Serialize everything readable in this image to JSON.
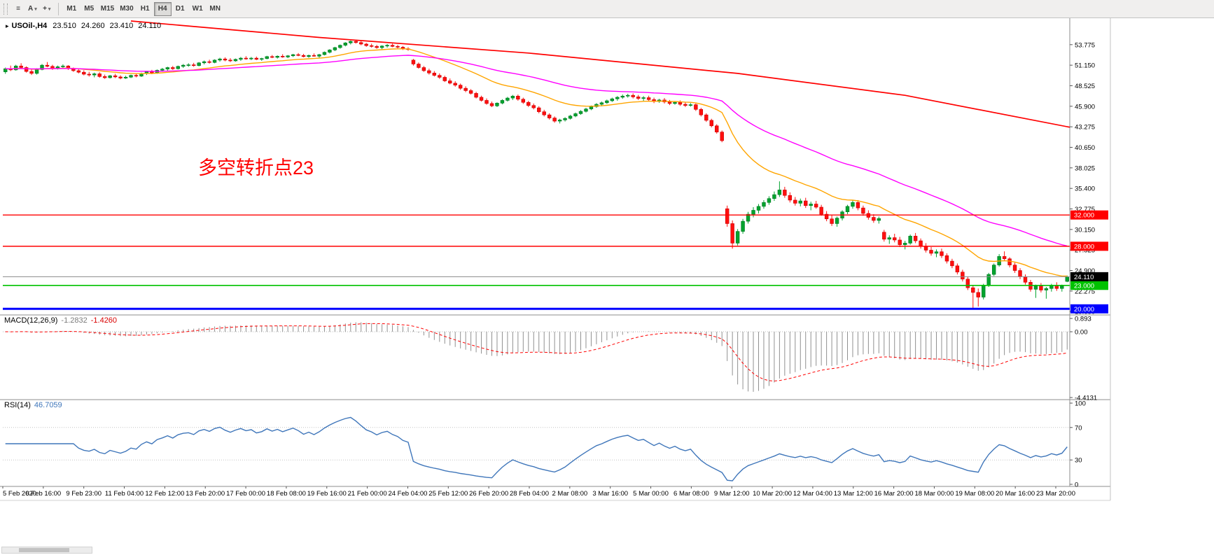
{
  "toolbar": {
    "menu_icon": "≡",
    "text_tool_label": "A",
    "cursor_tool_label": "+",
    "caret": "▾",
    "timeframes": [
      {
        "label": "M1",
        "active": false
      },
      {
        "label": "M5",
        "active": false
      },
      {
        "label": "M15",
        "active": false
      },
      {
        "label": "M30",
        "active": false
      },
      {
        "label": "H1",
        "active": false
      },
      {
        "label": "H4",
        "active": true
      },
      {
        "label": "D1",
        "active": false
      },
      {
        "label": "W1",
        "active": false
      },
      {
        "label": "MN",
        "active": false
      }
    ]
  },
  "chart_header": {
    "expand_arrow": "▸",
    "symbol_tf": "USOil-,H4",
    "open": "23.510",
    "high": "24.260",
    "low": "23.410",
    "close": "24.110"
  },
  "annotation": {
    "text": "多空转折点23",
    "color": "#FF0000"
  },
  "price_axis": {
    "min": 19.4,
    "max": 56.8,
    "labels": [
      "53.775",
      "51.150",
      "48.525",
      "45.900",
      "43.275",
      "40.650",
      "38.025",
      "35.400",
      "32.775",
      "30.150",
      "27.525",
      "24.900",
      "22.275",
      "19.650"
    ]
  },
  "time_axis": {
    "labels": [
      "5 Feb 2020",
      "6 Feb 16:00",
      "9 Feb 23:00",
      "11 Feb 04:00",
      "12 Feb 12:00",
      "13 Feb 20:00",
      "17 Feb 00:00",
      "18 Feb 08:00",
      "19 Feb 16:00",
      "21 Feb 00:00",
      "24 Feb 04:00",
      "25 Feb 12:00",
      "26 Feb 20:00",
      "28 Feb 04:00",
      "2 Mar 08:00",
      "3 Mar 16:00",
      "5 Mar 00:00",
      "6 Mar 08:00",
      "9 Mar 12:00",
      "10 Mar 20:00",
      "12 Mar 04:00",
      "13 Mar 12:00",
      "16 Mar 20:00",
      "18 Mar 00:00",
      "19 Mar 08:00",
      "20 Mar 16:00",
      "23 Mar 20:00"
    ]
  },
  "macd_panel": {
    "name": "MACD(12,26,9)",
    "value_main": "-1.2832",
    "value_signal": "-1.4260",
    "scale_max": "0.893",
    "scale_zero": "0.00",
    "scale_min": "-4.4131",
    "params": {
      "fast": 12,
      "slow": 26,
      "signal": 9
    },
    "colors": {
      "histogram": "#909090",
      "signal": "#FF0000"
    }
  },
  "rsi_panel": {
    "name": "RSI(14)",
    "value": "46.7059",
    "period": 14,
    "levels": [
      "100",
      "70",
      "30",
      "0"
    ],
    "level_lines": [
      70,
      30
    ],
    "color": "#3f76ba"
  },
  "chart_data": {
    "type": "candlestick",
    "symbol": "USOil-",
    "timeframe": "H4",
    "colors": {
      "up": "#00a32e",
      "down": "#ff0f0f",
      "up_stroke": "#007a22",
      "down_stroke": "#cc0000",
      "bid_line": "#8a8a8a",
      "bid_badge_bg": "#000000"
    },
    "current_price": {
      "value": 24.11,
      "label": "24.110"
    },
    "hlines": [
      {
        "price": 32.0,
        "label": "32.000",
        "color": "#FF0000",
        "width": 1.4
      },
      {
        "price": 28.0,
        "label": "28.000",
        "color": "#FF0000",
        "width": 1.4
      },
      {
        "price": 23.0,
        "label": "23.000",
        "color": "#00C200",
        "width": 1.6
      },
      {
        "price": 20.0,
        "label": "20.000",
        "color": "#0000FF",
        "width": 3
      }
    ],
    "moving_averages": [
      {
        "period": 21,
        "method": "ema",
        "color": "#FFA500",
        "width": 1.4
      },
      {
        "period": 55,
        "method": "ema",
        "color": "#FF00FF",
        "width": 1.4
      }
    ],
    "trendline": {
      "color": "#FF0000",
      "width": 1.7,
      "points_bar_price": [
        [
          24,
          56.8
        ],
        [
          60,
          54.7
        ],
        [
          100,
          52.7
        ],
        [
          140,
          50.1
        ],
        [
          172,
          47.3
        ],
        [
          206,
          42.9
        ]
      ]
    },
    "candles": [
      [
        50.3,
        50.85,
        50.05,
        50.7
      ],
      [
        50.7,
        51.1,
        50.4,
        50.55
      ],
      [
        50.55,
        51.2,
        50.45,
        51.05
      ],
      [
        51.05,
        51.4,
        50.7,
        50.85
      ],
      [
        50.85,
        51.0,
        50.2,
        50.35
      ],
      [
        50.35,
        50.6,
        49.9,
        50.1
      ],
      [
        50.1,
        50.75,
        49.95,
        50.6
      ],
      [
        50.6,
        51.3,
        50.5,
        51.15
      ],
      [
        51.15,
        51.55,
        50.9,
        51.0
      ],
      [
        51.0,
        51.2,
        50.55,
        50.75
      ],
      [
        50.75,
        51.1,
        50.6,
        50.95
      ],
      [
        50.95,
        51.25,
        50.7,
        51.05
      ],
      [
        51.05,
        51.15,
        50.55,
        50.7
      ],
      [
        50.7,
        50.85,
        50.3,
        50.45
      ],
      [
        50.45,
        50.7,
        50.1,
        50.25
      ],
      [
        50.25,
        50.5,
        49.85,
        50.0
      ],
      [
        50.0,
        50.3,
        49.7,
        49.9
      ],
      [
        49.9,
        50.2,
        49.6,
        50.05
      ],
      [
        50.05,
        50.25,
        49.55,
        49.7
      ],
      [
        49.7,
        49.95,
        49.4,
        49.55
      ],
      [
        49.55,
        49.9,
        49.45,
        49.8
      ],
      [
        49.8,
        50.05,
        49.5,
        49.65
      ],
      [
        49.65,
        49.85,
        49.35,
        49.5
      ],
      [
        49.5,
        49.8,
        49.4,
        49.62
      ],
      [
        49.62,
        49.95,
        49.5,
        49.85
      ],
      [
        49.85,
        50.1,
        49.6,
        49.75
      ],
      [
        49.75,
        50.2,
        49.65,
        50.1
      ],
      [
        50.1,
        50.4,
        49.9,
        50.3
      ],
      [
        50.3,
        50.55,
        50.0,
        50.15
      ],
      [
        50.15,
        50.6,
        50.05,
        50.5
      ],
      [
        50.5,
        50.8,
        50.3,
        50.65
      ],
      [
        50.65,
        50.95,
        50.45,
        50.85
      ],
      [
        50.85,
        51.05,
        50.55,
        50.7
      ],
      [
        50.7,
        51.1,
        50.6,
        51.0
      ],
      [
        51.0,
        51.3,
        50.8,
        51.15
      ],
      [
        51.15,
        51.4,
        50.95,
        51.2
      ],
      [
        51.2,
        51.45,
        50.95,
        51.1
      ],
      [
        51.1,
        51.55,
        51.0,
        51.45
      ],
      [
        51.45,
        51.75,
        51.25,
        51.6
      ],
      [
        51.6,
        51.85,
        51.35,
        51.5
      ],
      [
        51.5,
        51.9,
        51.4,
        51.8
      ],
      [
        51.8,
        52.1,
        51.6,
        51.95
      ],
      [
        51.95,
        52.15,
        51.65,
        51.8
      ],
      [
        51.8,
        52.05,
        51.55,
        51.7
      ],
      [
        51.7,
        52.0,
        51.6,
        51.9
      ],
      [
        51.9,
        52.2,
        51.7,
        52.05
      ],
      [
        52.05,
        52.3,
        51.85,
        51.95
      ],
      [
        51.95,
        52.2,
        51.8,
        52.05
      ],
      [
        52.05,
        52.25,
        51.8,
        51.9
      ],
      [
        51.9,
        52.1,
        51.7,
        52.0
      ],
      [
        52.0,
        52.35,
        51.9,
        52.25
      ],
      [
        52.25,
        52.45,
        52.05,
        52.15
      ],
      [
        52.15,
        52.4,
        52.0,
        52.3
      ],
      [
        52.3,
        52.55,
        52.1,
        52.2
      ],
      [
        52.2,
        52.45,
        52.05,
        52.35
      ],
      [
        52.35,
        52.6,
        52.2,
        52.5
      ],
      [
        52.5,
        52.7,
        52.3,
        52.4
      ],
      [
        52.4,
        52.6,
        52.15,
        52.25
      ],
      [
        52.25,
        52.5,
        52.1,
        52.4
      ],
      [
        52.4,
        52.65,
        52.25,
        52.3
      ],
      [
        52.3,
        52.6,
        52.1,
        52.5
      ],
      [
        52.5,
        52.9,
        52.4,
        52.8
      ],
      [
        52.8,
        53.2,
        52.65,
        53.1
      ],
      [
        53.1,
        53.5,
        52.95,
        53.4
      ],
      [
        53.4,
        53.8,
        53.25,
        53.7
      ],
      [
        53.7,
        54.1,
        53.55,
        54.0
      ],
      [
        54.0,
        54.3,
        53.8,
        54.2
      ],
      [
        54.2,
        54.35,
        53.9,
        54.05
      ],
      [
        54.05,
        54.25,
        53.7,
        53.85
      ],
      [
        53.85,
        54.0,
        53.5,
        53.65
      ],
      [
        53.65,
        53.9,
        53.4,
        53.55
      ],
      [
        53.55,
        53.75,
        53.25,
        53.4
      ],
      [
        53.4,
        53.7,
        53.2,
        53.6
      ],
      [
        53.6,
        53.85,
        53.4,
        53.7
      ],
      [
        53.7,
        53.9,
        53.45,
        53.55
      ],
      [
        53.55,
        53.75,
        53.3,
        53.45
      ],
      [
        53.45,
        53.6,
        53.1,
        53.25
      ],
      [
        53.25,
        53.45,
        53.0,
        53.15
      ],
      [
        51.8,
        51.95,
        51.1,
        51.3
      ],
      [
        51.3,
        51.5,
        50.7,
        50.85
      ],
      [
        50.85,
        51.05,
        50.3,
        50.45
      ],
      [
        50.45,
        50.7,
        49.95,
        50.15
      ],
      [
        50.15,
        50.4,
        49.7,
        49.85
      ],
      [
        49.85,
        50.1,
        49.4,
        49.6
      ],
      [
        49.6,
        49.8,
        49.0,
        49.15
      ],
      [
        49.15,
        49.45,
        48.7,
        48.85
      ],
      [
        48.85,
        49.1,
        48.4,
        48.6
      ],
      [
        48.6,
        48.8,
        48.0,
        48.2
      ],
      [
        48.2,
        48.45,
        47.7,
        47.9
      ],
      [
        47.9,
        48.1,
        47.4,
        47.55
      ],
      [
        47.55,
        47.75,
        46.9,
        47.05
      ],
      [
        47.05,
        47.25,
        46.5,
        46.65
      ],
      [
        46.65,
        46.9,
        46.1,
        46.25
      ],
      [
        46.25,
        46.5,
        45.8,
        45.95
      ],
      [
        45.95,
        46.4,
        45.8,
        46.3
      ],
      [
        46.3,
        46.8,
        46.15,
        46.65
      ],
      [
        46.65,
        47.1,
        46.5,
        46.95
      ],
      [
        46.95,
        47.35,
        46.7,
        47.2
      ],
      [
        47.2,
        47.4,
        46.6,
        46.8
      ],
      [
        46.8,
        47.0,
        46.2,
        46.4
      ],
      [
        46.4,
        46.6,
        45.8,
        46.0
      ],
      [
        46.0,
        46.25,
        45.5,
        45.7
      ],
      [
        45.7,
        45.9,
        45.0,
        45.2
      ],
      [
        45.2,
        45.45,
        44.6,
        44.8
      ],
      [
        44.8,
        45.0,
        44.2,
        44.4
      ],
      [
        44.4,
        44.6,
        43.8,
        44.0
      ],
      [
        44.0,
        44.3,
        43.7,
        44.15
      ],
      [
        44.15,
        44.5,
        43.95,
        44.35
      ],
      [
        44.35,
        44.8,
        44.2,
        44.65
      ],
      [
        44.65,
        45.1,
        44.5,
        44.95
      ],
      [
        44.95,
        45.4,
        44.8,
        45.25
      ],
      [
        45.25,
        45.7,
        45.1,
        45.55
      ],
      [
        45.55,
        46.0,
        45.4,
        45.85
      ],
      [
        45.85,
        46.3,
        45.7,
        46.15
      ],
      [
        46.15,
        46.5,
        45.9,
        46.35
      ],
      [
        46.35,
        46.75,
        46.2,
        46.6
      ],
      [
        46.6,
        47.0,
        46.45,
        46.85
      ],
      [
        46.85,
        47.2,
        46.6,
        47.05
      ],
      [
        47.05,
        47.4,
        46.85,
        47.2
      ],
      [
        47.2,
        47.5,
        47.0,
        47.3
      ],
      [
        47.3,
        47.55,
        46.9,
        47.1
      ],
      [
        47.1,
        47.35,
        46.7,
        46.9
      ],
      [
        46.9,
        47.2,
        46.6,
        47.0
      ],
      [
        47.0,
        47.25,
        46.55,
        46.75
      ],
      [
        46.75,
        47.0,
        46.3,
        46.5
      ],
      [
        46.5,
        46.85,
        46.35,
        46.7
      ],
      [
        46.7,
        46.95,
        46.25,
        46.45
      ],
      [
        46.45,
        46.7,
        46.05,
        46.25
      ],
      [
        46.25,
        46.55,
        46.1,
        46.4
      ],
      [
        46.4,
        46.65,
        45.95,
        46.15
      ],
      [
        46.15,
        46.4,
        45.8,
        46.0
      ],
      [
        46.0,
        46.3,
        45.85,
        46.1
      ],
      [
        46.1,
        46.25,
        45.3,
        45.5
      ],
      [
        45.5,
        45.7,
        44.6,
        44.8
      ],
      [
        44.8,
        45.0,
        43.9,
        44.1
      ],
      [
        44.1,
        44.3,
        43.2,
        43.4
      ],
      [
        43.4,
        43.6,
        42.4,
        42.6
      ],
      [
        42.6,
        42.8,
        41.3,
        41.5
      ],
      [
        32.8,
        33.2,
        30.5,
        30.9
      ],
      [
        30.9,
        31.3,
        27.7,
        28.4
      ],
      [
        28.4,
        30.2,
        28.1,
        29.9
      ],
      [
        29.9,
        31.5,
        29.6,
        31.2
      ],
      [
        31.2,
        32.4,
        30.9,
        32.1
      ],
      [
        32.1,
        33.0,
        31.7,
        32.6
      ],
      [
        32.6,
        33.4,
        32.2,
        33.1
      ],
      [
        33.1,
        33.9,
        32.8,
        33.6
      ],
      [
        33.6,
        34.4,
        33.3,
        34.1
      ],
      [
        34.1,
        35.0,
        33.8,
        34.6
      ],
      [
        34.6,
        36.3,
        34.3,
        35.2
      ],
      [
        35.2,
        35.6,
        34.2,
        34.5
      ],
      [
        34.5,
        34.9,
        33.6,
        33.9
      ],
      [
        33.9,
        34.3,
        33.2,
        33.5
      ],
      [
        33.5,
        34.1,
        33.1,
        33.8
      ],
      [
        33.8,
        34.2,
        32.9,
        33.2
      ],
      [
        33.2,
        33.7,
        32.6,
        33.4
      ],
      [
        33.4,
        33.8,
        32.8,
        33.0
      ],
      [
        33.0,
        33.3,
        31.9,
        32.1
      ],
      [
        32.1,
        32.5,
        31.2,
        31.5
      ],
      [
        31.5,
        32.0,
        30.6,
        30.9
      ],
      [
        30.9,
        31.8,
        30.5,
        31.6
      ],
      [
        31.6,
        32.6,
        31.3,
        32.4
      ],
      [
        32.4,
        33.3,
        32.1,
        33.1
      ],
      [
        33.1,
        33.85,
        32.8,
        33.6
      ],
      [
        33.6,
        33.9,
        32.6,
        32.9
      ],
      [
        32.9,
        33.2,
        31.9,
        32.2
      ],
      [
        32.2,
        32.6,
        31.4,
        31.7
      ],
      [
        31.7,
        32.1,
        31.0,
        31.3
      ],
      [
        31.3,
        31.8,
        30.9,
        31.55
      ],
      [
        29.8,
        30.1,
        28.6,
        28.9
      ],
      [
        28.9,
        29.4,
        28.3,
        29.1
      ],
      [
        29.1,
        29.6,
        28.5,
        28.8
      ],
      [
        28.8,
        29.2,
        27.9,
        28.2
      ],
      [
        28.2,
        28.7,
        27.6,
        28.4
      ],
      [
        28.4,
        29.5,
        28.2,
        29.3
      ],
      [
        29.3,
        29.7,
        28.4,
        28.7
      ],
      [
        28.7,
        29.0,
        27.7,
        28.0
      ],
      [
        28.0,
        28.4,
        27.2,
        27.5
      ],
      [
        27.5,
        27.9,
        26.8,
        27.1
      ],
      [
        27.1,
        27.6,
        26.6,
        27.3
      ],
      [
        27.3,
        27.7,
        26.5,
        26.8
      ],
      [
        26.8,
        27.1,
        25.8,
        26.1
      ],
      [
        26.1,
        26.4,
        25.2,
        25.5
      ],
      [
        25.5,
        25.8,
        24.4,
        24.7
      ],
      [
        24.7,
        25.0,
        23.5,
        23.8
      ],
      [
        23.8,
        24.1,
        22.4,
        22.7
      ],
      [
        22.7,
        23.0,
        20.05,
        22.1
      ],
      [
        22.1,
        22.6,
        20.3,
        21.5
      ],
      [
        21.5,
        23.2,
        21.2,
        23.0
      ],
      [
        23.0,
        24.6,
        22.8,
        24.4
      ],
      [
        24.4,
        25.8,
        24.2,
        25.6
      ],
      [
        25.6,
        27.0,
        25.4,
        26.7
      ],
      [
        26.7,
        27.35,
        26.1,
        26.4
      ],
      [
        26.4,
        26.6,
        25.3,
        25.6
      ],
      [
        25.6,
        25.9,
        24.6,
        24.9
      ],
      [
        24.9,
        25.2,
        23.8,
        24.1
      ],
      [
        24.1,
        24.4,
        23.1,
        23.4
      ],
      [
        23.4,
        23.7,
        22.2,
        22.5
      ],
      [
        22.5,
        23.1,
        21.4,
        22.9
      ],
      [
        22.9,
        23.3,
        22.1,
        22.4
      ],
      [
        22.4,
        22.8,
        21.3,
        22.6
      ],
      [
        22.6,
        23.2,
        22.2,
        23.0
      ],
      [
        23.0,
        23.4,
        22.3,
        22.6
      ],
      [
        22.6,
        23.1,
        22.2,
        22.9
      ],
      [
        23.51,
        24.26,
        23.41,
        24.11
      ]
    ]
  }
}
